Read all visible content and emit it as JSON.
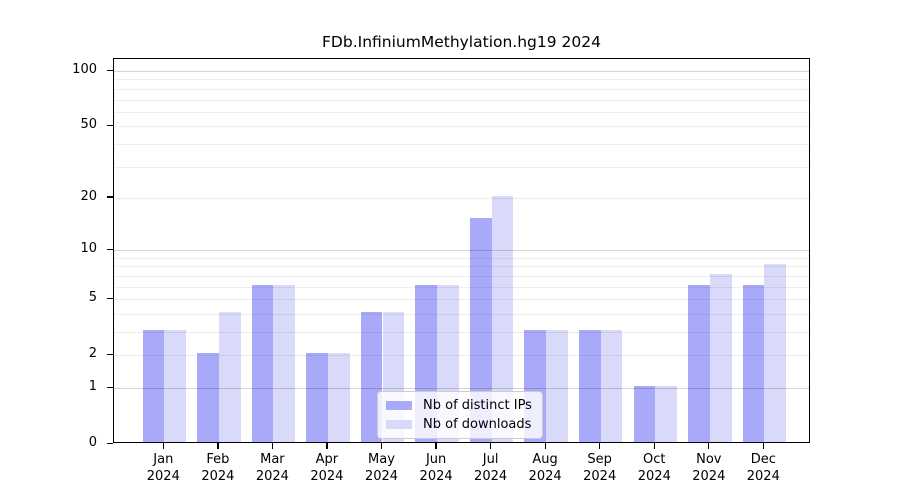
{
  "figure": {
    "background_color": "#ffffff"
  },
  "chart_data": {
    "type": "bar",
    "title": "FDb.InfiniumMethylation.hg19 2024",
    "categories": [
      "Jan",
      "Feb",
      "Mar",
      "Apr",
      "May",
      "Jun",
      "Jul",
      "Aug",
      "Sep",
      "Oct",
      "Nov",
      "Dec"
    ],
    "category_line2": "2024",
    "series": [
      {
        "name": "Nb of distinct IPs",
        "color": "#a9a9f9",
        "values": [
          3,
          2,
          6,
          2,
          4,
          6,
          15,
          3,
          3,
          1,
          6,
          6
        ]
      },
      {
        "name": "Nb of downloads",
        "color": "#d9d9f9",
        "values": [
          3,
          4,
          6,
          2,
          4,
          6,
          20,
          3,
          3,
          1,
          7,
          8
        ]
      }
    ],
    "ylabel": "",
    "xlabel": "",
    "yscale": "log1p",
    "yticks": [
      0,
      1,
      2,
      5,
      10,
      20,
      50,
      100
    ],
    "yticks_emphasized": [
      1,
      10,
      100
    ],
    "yticks_minor": [
      3,
      4,
      6,
      7,
      8,
      9,
      30,
      40,
      60,
      70,
      80,
      90
    ],
    "ylim": [
      0,
      116
    ],
    "grid": "horizontal",
    "legend_position": "bottom-center",
    "colors": {
      "axis": "#000000",
      "grid_decade": "#d4d4d4",
      "grid_minor": "#efefef",
      "legend_border": "#cccccc"
    }
  }
}
